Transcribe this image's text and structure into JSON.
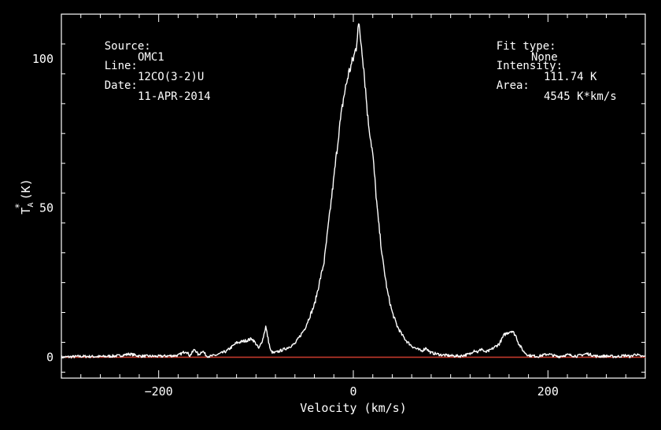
{
  "header_left": [
    {
      "label": "Source:",
      "value": "OMC1"
    },
    {
      "label": "Line:",
      "value": "12CO(3-2)U"
    },
    {
      "label": "Date:",
      "value": "11-APR-2014"
    }
  ],
  "header_right": [
    {
      "label": "Fit type:",
      "value": "None"
    },
    {
      "label": "Intensity:",
      "value": "111.74 K"
    },
    {
      "label": "Area:",
      "value": "4545 K*km/s"
    }
  ],
  "colors": {
    "background": "#000000",
    "axes": "#ffffff",
    "spectrum": "#ffffff",
    "baseline": "#c0392b"
  },
  "chart_data": {
    "type": "line",
    "xlabel": "Velocity (km/s)",
    "ylabel_main": "T",
    "ylabel_sub": "A",
    "ylabel_sup": "*",
    "ylabel_unit": "(K)",
    "xlim": [
      -300,
      300
    ],
    "ylim": [
      -7,
      115
    ],
    "xticks": [
      -200,
      0,
      200
    ],
    "xtick_labels": [
      "-200",
      "0",
      "200"
    ],
    "yticks": [
      0,
      50,
      100
    ],
    "ytick_labels": [
      "0",
      "50",
      "100"
    ],
    "baseline_y": 0,
    "series": [
      {
        "x": [
          -300,
          -280,
          -260,
          -240,
          -230,
          -220,
          -200,
          -180,
          -172,
          -168,
          -163,
          -159,
          -155,
          -151,
          -147,
          -140,
          -130,
          -120,
          -110,
          -104,
          -100,
          -97,
          -93,
          -90,
          -87,
          -85,
          -82,
          -78,
          -70,
          -60,
          -50,
          -40,
          -30,
          -20,
          -15,
          -10,
          -5,
          0,
          3,
          5,
          7,
          9,
          11,
          13,
          15,
          20,
          25,
          30,
          35,
          40,
          45,
          50,
          55,
          60,
          65,
          70,
          73,
          75,
          77,
          80,
          90,
          100,
          110,
          120,
          124,
          128,
          132,
          135,
          140,
          150,
          155,
          160,
          163,
          167,
          170,
          175,
          180,
          190,
          200,
          210,
          220,
          230,
          240,
          250,
          260,
          270,
          280,
          285,
          290,
          295,
          300
        ],
        "y": [
          0,
          0.3,
          0.2,
          0.5,
          1.1,
          0.4,
          0.3,
          0.6,
          2.1,
          0.5,
          2.7,
          0.7,
          2.2,
          0.5,
          0.3,
          0.8,
          2.1,
          4.8,
          5.6,
          6.2,
          4.5,
          2.8,
          6.1,
          10.3,
          5.2,
          2.1,
          1.4,
          1.8,
          2.8,
          4.5,
          9.5,
          17.5,
          32,
          60,
          75,
          87,
          95,
          100,
          104,
          112,
          108,
          103,
          96,
          88,
          80,
          68,
          48,
          33,
          22,
          15,
          10.5,
          7.5,
          5.3,
          3.8,
          2.8,
          2.1,
          2.7,
          3.2,
          2.2,
          1.5,
          0.8,
          0.5,
          0.4,
          1.1,
          2.4,
          1.7,
          2.9,
          1.6,
          2.2,
          4.5,
          7.5,
          8.5,
          8.9,
          7.2,
          4.5,
          1.9,
          0.6,
          0.3,
          1.1,
          0.2,
          0.8,
          0.4,
          1.2,
          0.3,
          0.4,
          0.2,
          0.6,
          0.2,
          1.1,
          0.3,
          0.2
        ]
      }
    ]
  }
}
